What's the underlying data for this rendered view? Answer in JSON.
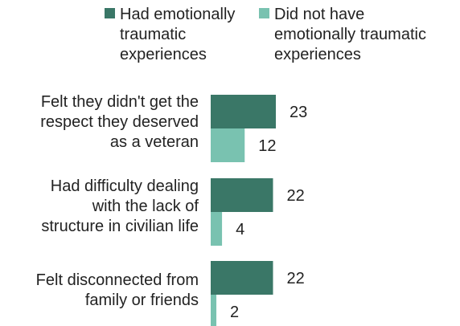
{
  "chart_data": {
    "type": "bar",
    "orientation": "horizontal",
    "categories": [
      "Felt they didn't get the\nrespect they deserved\nas a veteran",
      "Had difficulty dealing\nwith the lack of\nstructure in civilian life",
      "Felt disconnected from\nfamily or friends"
    ],
    "series": [
      {
        "name": "Had emotionally\ntraumatic\nexperiences",
        "values": [
          23,
          22,
          22
        ],
        "color": "#3a7767"
      },
      {
        "name": "Did not have\nemotionally traumatic\nexperiences",
        "values": [
          12,
          4,
          2
        ],
        "color": "#79c2b0"
      }
    ],
    "xlim": [
      0,
      30
    ],
    "grid": false,
    "legend_position": "top"
  }
}
